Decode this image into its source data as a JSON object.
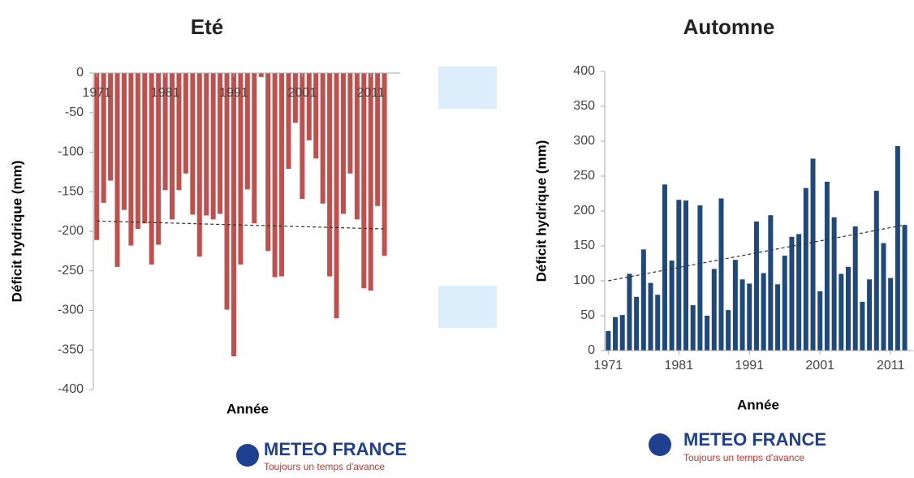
{
  "chart_data": [
    {
      "type": "bar",
      "title": "Eté",
      "xlabel": "Année",
      "ylabel": "Déficit hydrique (mm)",
      "color": "#c0504d",
      "x": [
        1971,
        1972,
        1973,
        1974,
        1975,
        1976,
        1977,
        1978,
        1979,
        1980,
        1981,
        1982,
        1983,
        1984,
        1985,
        1986,
        1987,
        1988,
        1989,
        1990,
        1991,
        1992,
        1993,
        1994,
        1995,
        1996,
        1997,
        1998,
        1999,
        2000,
        2001,
        2002,
        2003,
        2004,
        2005,
        2006,
        2007,
        2008,
        2009,
        2010,
        2011,
        2012,
        2013
      ],
      "values": [
        -211,
        -164,
        -136,
        -245,
        -173,
        -218,
        -197,
        -190,
        -242,
        -217,
        -148,
        -185,
        -148,
        -127,
        -179,
        -232,
        -180,
        -185,
        -178,
        -299,
        -358,
        -242,
        -147,
        -190,
        -5,
        -225,
        -258,
        -257,
        -121,
        -63,
        -159,
        -85,
        -108,
        -165,
        -257,
        -310,
        -178,
        -127,
        -185,
        -272,
        -275,
        -168,
        -231
      ],
      "trend": [
        -187,
        -197
      ],
      "xlim": [
        1970.5,
        2015.3
      ],
      "xticks": [
        1971,
        1981,
        1991,
        2001,
        2011
      ],
      "ylim": [
        -400,
        0
      ],
      "yticks": [
        -400,
        -350,
        -300,
        -250,
        -200,
        -150,
        -100,
        -50,
        0
      ]
    },
    {
      "type": "bar",
      "title": "Automne",
      "xlabel": "Année",
      "ylabel": "Déficit hydrique (mm)",
      "color": "#1f497d",
      "x": [
        1971,
        1972,
        1973,
        1974,
        1975,
        1976,
        1977,
        1978,
        1979,
        1980,
        1981,
        1982,
        1983,
        1984,
        1985,
        1986,
        1987,
        1988,
        1989,
        1990,
        1991,
        1992,
        1993,
        1994,
        1995,
        1996,
        1997,
        1998,
        1999,
        2000,
        2001,
        2002,
        2003,
        2004,
        2005,
        2006,
        2007,
        2008,
        2009,
        2010,
        2011,
        2012,
        2013
      ],
      "values": [
        28,
        48,
        51,
        110,
        77,
        145,
        97,
        80,
        238,
        129,
        216,
        215,
        65,
        208,
        50,
        117,
        218,
        58,
        130,
        102,
        96,
        185,
        111,
        194,
        95,
        136,
        163,
        167,
        233,
        275,
        85,
        242,
        191,
        110,
        120,
        178,
        70,
        102,
        229,
        154,
        104,
        293,
        180
      ],
      "trend": [
        100,
        180
      ],
      "xlim": [
        1970.5,
        2014.2
      ],
      "xticks": [
        1971,
        1981,
        1991,
        2001,
        2011
      ],
      "ylim": [
        0,
        400
      ],
      "yticks": [
        0,
        50,
        100,
        150,
        200,
        250,
        300,
        350,
        400
      ]
    }
  ],
  "logo": {
    "name": "METEO FRANCE",
    "tagline": "Toujours un temps d'avance"
  }
}
